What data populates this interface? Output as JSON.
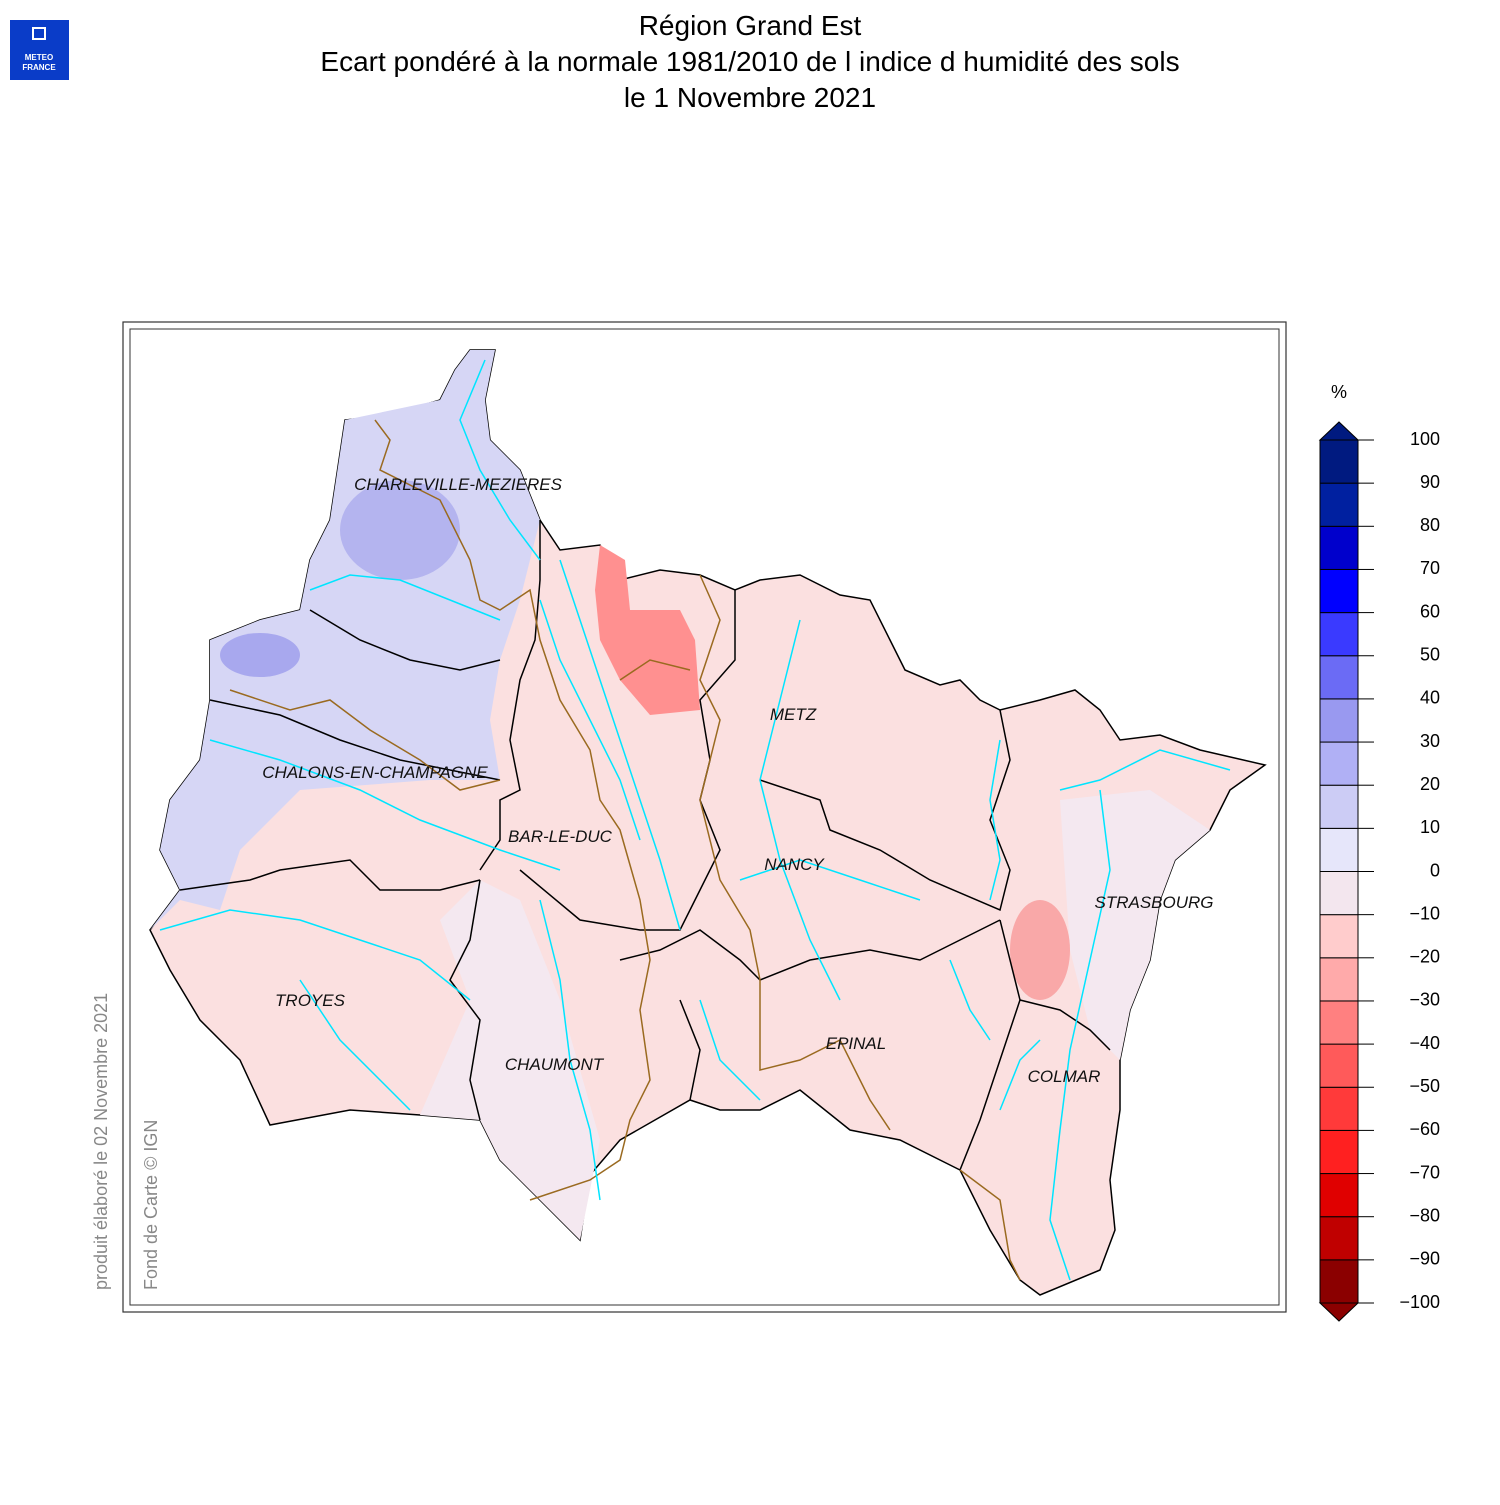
{
  "header": {
    "logo": [
      "METEO",
      "FRANCE"
    ],
    "title": [
      "Région Grand Est",
      "Ecart pondéré à la normale 1981/2010 de l indice d humidité des sols",
      "le 1 Novembre 2021"
    ]
  },
  "map": {
    "cities": [
      "CHARLEVILLE-MEZIERES",
      "METZ",
      "CHALONS-EN-CHAMPAGNE",
      "BAR-LE-DUC",
      "NANCY",
      "STRASBOURG",
      "TROYES",
      "EPINAL",
      "CHAUMONT",
      "COLMAR"
    ]
  },
  "legend": {
    "unit": "%",
    "ticks": [
      {
        "value": -100,
        "label": "−100"
      },
      {
        "value": -90,
        "label": "−90"
      },
      {
        "value": -80,
        "label": "−80"
      },
      {
        "value": -70,
        "label": "−70"
      },
      {
        "value": -60,
        "label": "−60"
      },
      {
        "value": -50,
        "label": "−50"
      },
      {
        "value": -40,
        "label": "−40"
      },
      {
        "value": -30,
        "label": "−30"
      },
      {
        "value": -20,
        "label": "−20"
      },
      {
        "value": -10,
        "label": "−10"
      },
      0,
      10,
      20,
      30,
      40,
      50,
      60,
      70,
      80,
      90,
      100
    ],
    "colors": [
      "#8b0000",
      "#c00000",
      "#e00000",
      "#ff2020",
      "#ff3a3a",
      "#ff5a5a",
      "#ff8080",
      "#ffaaaa",
      "#ffcccc",
      "#f3e6ee",
      "#e6e6fa",
      "#ccccf5",
      "#b0b0f5",
      "#9999f0",
      "#6b6bf5",
      "#3a3aff",
      "#0000ff",
      "#0000cc",
      "#0020a0",
      "#001a80"
    ]
  },
  "credits": {
    "produced": "produit élaboré le 02 Novembre 2021",
    "basemap": "Fond de Carte © IGN"
  }
}
